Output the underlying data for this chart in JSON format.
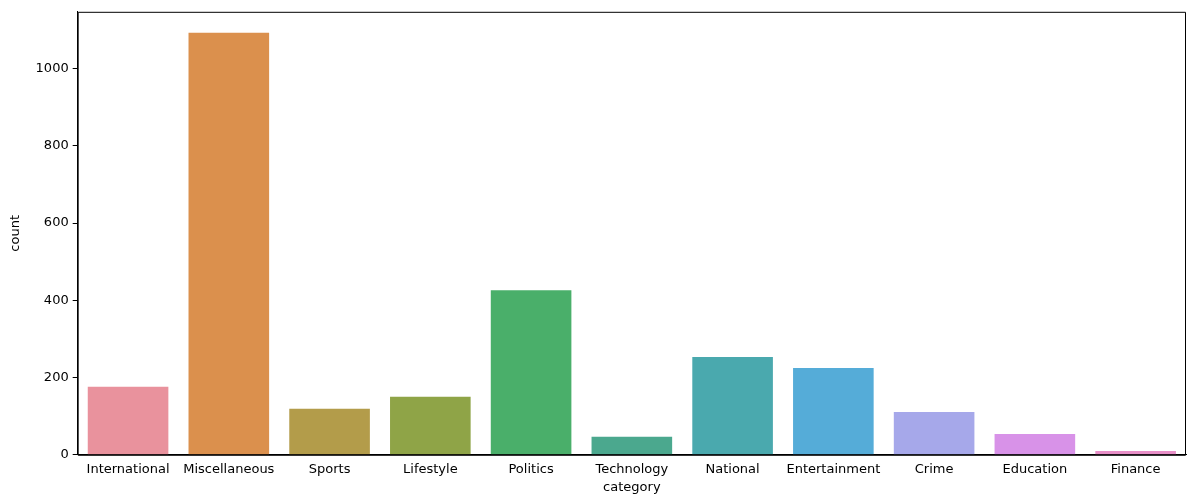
{
  "chart_data": {
    "type": "bar",
    "xlabel": "category",
    "ylabel": "count",
    "categories": [
      "International",
      "Miscellaneous",
      "Sports",
      "Lifestyle",
      "Politics",
      "Technology",
      "National",
      "Entertainment",
      "Crime",
      "Education",
      "Finance"
    ],
    "values": [
      176,
      1093,
      119,
      150,
      426,
      47,
      253,
      225,
      111,
      54,
      10
    ],
    "colors": [
      "#e9929d",
      "#db904d",
      "#b39c4a",
      "#8fa447",
      "#4aaf6a",
      "#4ba88e",
      "#4aa9ae",
      "#55acd8",
      "#a6a8ea",
      "#d892e8",
      "#e88fc8"
    ],
    "ylim": [
      0,
      1147
    ],
    "yticks": [
      0,
      200,
      400,
      600,
      800,
      1000
    ],
    "grid": false,
    "legend": false
  }
}
